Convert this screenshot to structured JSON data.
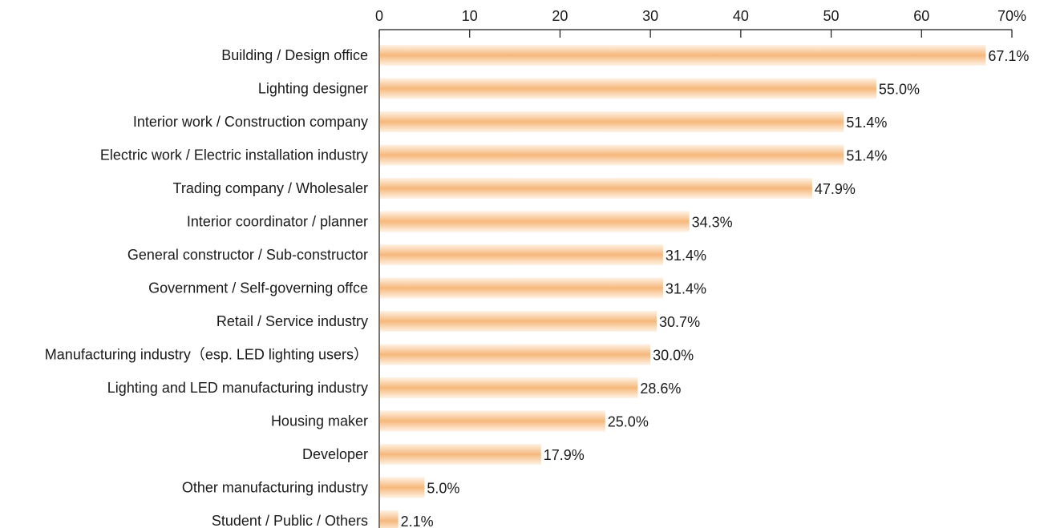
{
  "chart_data": {
    "type": "bar",
    "orientation": "horizontal",
    "categories": [
      "Building / Design office",
      "Lighting designer",
      "Interior work / Construction company",
      "Electric work / Electric installation industry",
      "Trading company / Wholesaler",
      "Interior coordinator / planner",
      "General constructor / Sub-constructor",
      "Government / Self-governing offce",
      "Retail / Service industry",
      "Manufacturing industry（esp. LED lighting users）",
      "Lighting and LED manufacturing industry",
      "Housing maker",
      "Developer",
      "Other manufacturing industry",
      "Student / Public / Others"
    ],
    "values": [
      67.1,
      55.0,
      51.4,
      51.4,
      47.9,
      34.3,
      31.4,
      31.4,
      30.7,
      30.0,
      28.6,
      25.0,
      17.9,
      5.0,
      2.1
    ],
    "value_labels": [
      "67.1%",
      "55.0%",
      "51.4%",
      "51.4%",
      "47.9%",
      "34.3%",
      "31.4%",
      "31.4%",
      "30.7%",
      "30.0%",
      "28.6%",
      "25.0%",
      "17.9%",
      "5.0%",
      "2.1%"
    ],
    "xlim": [
      0,
      70
    ],
    "x_ticks": [
      0,
      10,
      20,
      30,
      40,
      50,
      60,
      70
    ],
    "x_tick_labels": [
      "0",
      "10",
      "20",
      "30",
      "40",
      "50",
      "60",
      "70%"
    ],
    "axis_position": "top",
    "grid": false,
    "legend": "none",
    "bar_color_light": "#fff3e6",
    "bar_color_dark": "#f6b87c",
    "axis_color": "#1a1a1a"
  }
}
